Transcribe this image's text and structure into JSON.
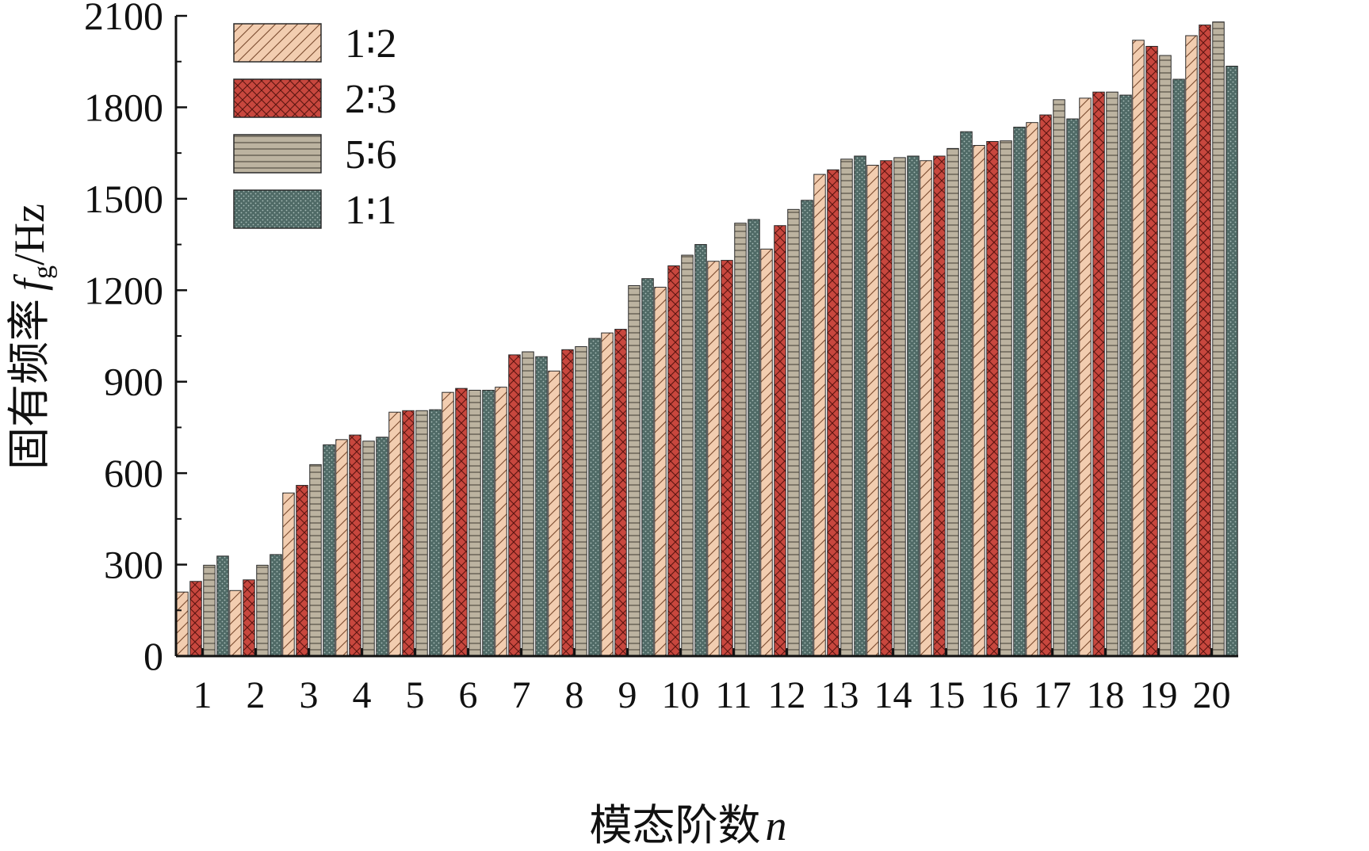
{
  "chart_data": {
    "type": "bar",
    "title": "",
    "xlabel_cn": "模态阶数",
    "xlabel_var": "n",
    "ylabel_cn": "固有频率",
    "ylabel_var": "f",
    "ylabel_sub": "g",
    "ylabel_unit": "/Hz",
    "ylim": [
      0,
      2100
    ],
    "yticks": [
      "0",
      "300",
      "600",
      "900",
      "1200",
      "1500",
      "1800",
      "2100"
    ],
    "categories": [
      "1",
      "2",
      "3",
      "4",
      "5",
      "6",
      "7",
      "8",
      "9",
      "10",
      "11",
      "12",
      "13",
      "14",
      "15",
      "16",
      "17",
      "18",
      "19",
      "20"
    ],
    "legend_position": "top-left",
    "series": [
      {
        "name": "1∶2",
        "color": "#f2cdb0",
        "pattern": "diagonal-hatch",
        "values": [
          210,
          215,
          535,
          710,
          800,
          865,
          882,
          935,
          1060,
          1210,
          1295,
          1335,
          1580,
          1610,
          1625,
          1675,
          1750,
          1830,
          2020,
          2035
        ]
      },
      {
        "name": "2∶3",
        "color": "#c8473e",
        "pattern": "cross-hatch",
        "values": [
          245,
          250,
          560,
          725,
          805,
          878,
          988,
          1005,
          1072,
          1280,
          1298,
          1412,
          1595,
          1625,
          1640,
          1688,
          1775,
          1850,
          2000,
          2070
        ]
      },
      {
        "name": "5∶6",
        "color": "#bcb3a0",
        "pattern": "horizontal-lines",
        "values": [
          298,
          298,
          628,
          705,
          805,
          872,
          998,
          1015,
          1215,
          1315,
          1420,
          1465,
          1630,
          1635,
          1665,
          1690,
          1825,
          1850,
          1970,
          2080
        ]
      },
      {
        "name": "1∶1",
        "color": "#4f6a66",
        "pattern": "dots",
        "values": [
          328,
          333,
          693,
          718,
          808,
          872,
          982,
          1042,
          1238,
          1350,
          1432,
          1495,
          1640,
          1640,
          1720,
          1735,
          1762,
          1840,
          1892,
          1935
        ]
      }
    ]
  }
}
